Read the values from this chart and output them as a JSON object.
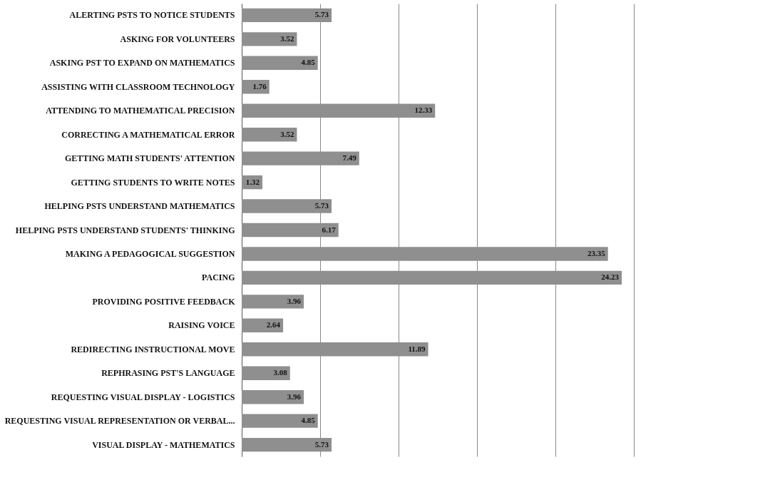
{
  "chart_data": {
    "type": "bar",
    "orientation": "horizontal",
    "categories": [
      "ALERTING PSTS TO NOTICE STUDENTS",
      "ASKING FOR VOLUNTEERS",
      "ASKING PST TO EXPAND ON MATHEMATICS",
      "ASSISTING WITH CLASSROOM TECHNOLOGY",
      "ATTENDING TO MATHEMATICAL PRECISION",
      "CORRECTING A MATHEMATICAL ERROR",
      "GETTING MATH STUDENTS' ATTENTION",
      "GETTING STUDENTS TO WRITE NOTES",
      "HELPING PSTS UNDERSTAND MATHEMATICS",
      "HELPING PSTS UNDERSTAND STUDENTS' THINKING",
      "MAKING A PEDAGOGICAL SUGGESTION",
      "PACING",
      "PROVIDING POSITIVE FEEDBACK",
      "RAISING VOICE",
      "REDIRECTING INSTRUCTIONAL MOVE",
      "REPHRASING PST'S LANGUAGE",
      "REQUESTING VISUAL DISPLAY - LOGISTICS",
      "REQUESTING VISUAL REPRESENTATION OR VERBAL...",
      "VISUAL DISPLAY - MATHEMATICS"
    ],
    "values": [
      5.73,
      3.52,
      4.85,
      1.76,
      12.33,
      3.52,
      7.49,
      1.32,
      5.73,
      6.17,
      23.35,
      24.23,
      3.96,
      2.64,
      11.89,
      3.08,
      3.96,
      4.85,
      5.73
    ],
    "color": "#8f8f8f",
    "xlim": [
      0,
      25
    ],
    "xticks": [
      {
        "value": 0,
        "label": null
      },
      {
        "value": 5,
        "label": null
      },
      {
        "value": 10,
        "label": null
      },
      {
        "value": 15,
        "label": null
      },
      {
        "value": 20,
        "label": null
      },
      {
        "value": 25,
        "label": null
      }
    ],
    "grid": "x",
    "tick_labels": "y",
    "data_labels": true
  }
}
